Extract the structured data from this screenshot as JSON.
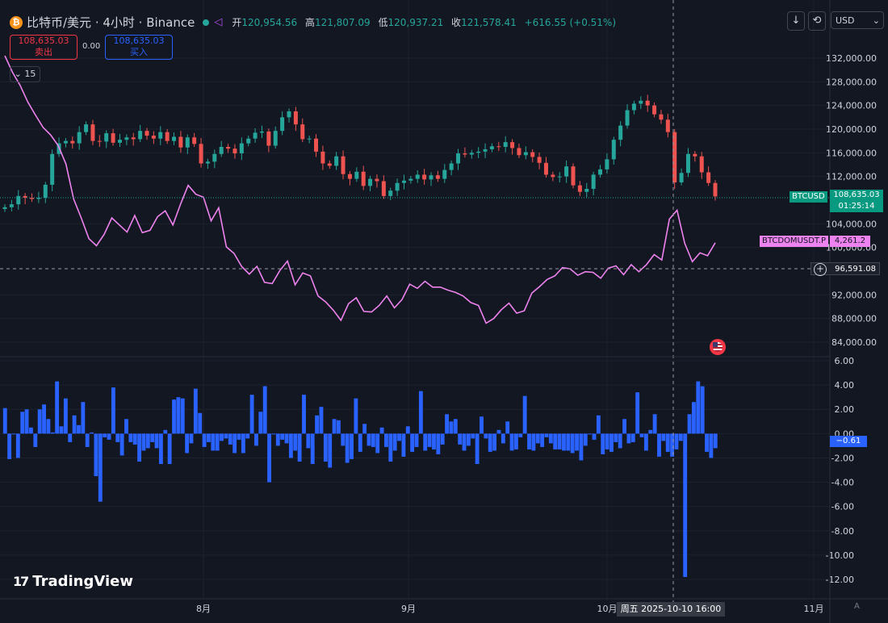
{
  "header": {
    "symbol_title": "比特币/美元 · 4小时 · Binance",
    "coin_glyph": "₿",
    "open_label": "开",
    "open_value": "120,954.56",
    "high_label": "高",
    "high_value": "121,807.09",
    "low_label": "低",
    "low_value": "120,937.21",
    "close_label": "收",
    "close_value": "121,578.41",
    "change_value": "+616.55 (+0.51%)"
  },
  "trading": {
    "sell_price": "108,635.03",
    "sell_label": "卖出",
    "spread": "0.00",
    "buy_price": "108,635.03",
    "buy_label": "买入",
    "quantity": "15"
  },
  "toolbar": {
    "download_icon": "download-arrow-icon",
    "refresh_icon": "cycle-icon",
    "currency": "USD"
  },
  "price_axis": {
    "labels": [
      "132,000.00",
      "128,000.00",
      "124,000.00",
      "120,000.00",
      "116,000.00",
      "112,000.00",
      "104,000.00",
      "100,000.00",
      "92,000.00",
      "88,000.00",
      "84,000.00"
    ]
  },
  "osc_axis": {
    "labels": [
      "6.00",
      "4.00",
      "2.00",
      "0.00",
      "-2.00",
      "-4.00",
      "-6.00",
      "-8.00",
      "-10.00",
      "-12.00"
    ]
  },
  "time_axis": {
    "labels": [
      "8月",
      "9月",
      "10月",
      "11月"
    ]
  },
  "series_labels": {
    "btc_tag": "BTCUSD",
    "btc_price": "108,635.03",
    "btc_countdown": "01:25:14",
    "dom_tag": "BTCDOMUSDT.P",
    "dom_price": "4,261.2"
  },
  "crosshair": {
    "y_value": "96,591.08",
    "x_value": "周五 2025-10-10  16:00"
  },
  "oscillator": {
    "current_value": "−0.61"
  },
  "branding": {
    "logo_text": "TradingView",
    "logo_mark": "17",
    "auto_label": "A"
  },
  "colors": {
    "background": "#131722",
    "up": "#26a69a",
    "down": "#ef5350",
    "dominance": "#ee82ee",
    "histogram": "#2962ff",
    "grid": "#1e222d"
  },
  "chart_data": {
    "type": "candlestick",
    "y_range": [
      82000,
      136000
    ],
    "price_ticks": [
      84000,
      88000,
      92000,
      100000,
      104000,
      112000,
      116000,
      120000,
      124000,
      128000,
      132000
    ],
    "btc_close": [
      106800,
      107300,
      108700,
      108400,
      108200,
      108400,
      110600,
      115800,
      117600,
      118000,
      117600,
      119500,
      120800,
      118000,
      117900,
      119300,
      117700,
      118200,
      118600,
      118300,
      119700,
      118900,
      118400,
      119500,
      118000,
      118700,
      116900,
      118600,
      117500,
      114200,
      114500,
      115800,
      117000,
      116700,
      115900,
      117600,
      118400,
      119400,
      119600,
      117200,
      119700,
      122000,
      123000,
      120800,
      118300,
      118400,
      116200,
      114200,
      113800,
      115400,
      112400,
      111600,
      112800,
      110400,
      111600,
      111200,
      108700,
      109600,
      110900,
      111300,
      111600,
      112300,
      111500,
      112200,
      111600,
      113100,
      114200,
      115900,
      115700,
      116000,
      116200,
      116600,
      117100,
      117000,
      117800,
      116800,
      115600,
      116100,
      115300,
      114300,
      112300,
      111900,
      112000,
      113700,
      110500,
      109400,
      109900,
      112300,
      113200,
      114900,
      118200,
      120600,
      123200,
      124300,
      124800,
      124000,
      122500,
      121600,
      119500,
      111000,
      112600,
      115800,
      115400,
      112700,
      110900,
      108635
    ],
    "dominance_y": [
      132400,
      129600,
      127400,
      124600,
      122400,
      120300,
      119000,
      117200,
      114100,
      108200,
      105000,
      101500,
      100300,
      102200,
      105000,
      103800,
      102600,
      105400,
      102500,
      102900,
      105200,
      106200,
      103800,
      107300,
      110500,
      109000,
      108500,
      104500,
      106700,
      100100,
      99000,
      96800,
      95500,
      96800,
      94100,
      93900,
      96100,
      97700,
      93700,
      95700,
      95200,
      91800,
      90800,
      89400,
      87700,
      90500,
      91500,
      89200,
      89100,
      90200,
      91800,
      89800,
      91200,
      93800,
      93100,
      94300,
      93300,
      93300,
      92800,
      92400,
      91800,
      90700,
      90200,
      87200,
      88000,
      89500,
      90600,
      88900,
      89300,
      92300,
      93400,
      94600,
      95200,
      96600,
      96400,
      95300,
      95900,
      95800,
      94800,
      96500,
      96900,
      95400,
      97100,
      95900,
      97100,
      98800,
      97900,
      104800,
      106300,
      100700,
      97600,
      99100,
      98600,
      100800
    ],
    "histogram": [
      2.1,
      -2.1,
      0.0,
      -2.0,
      1.8,
      2.0,
      0.5,
      -1.1,
      2.0,
      2.4,
      1.2,
      0.1,
      4.3,
      0.6,
      2.9,
      -0.7,
      1.5,
      0.7,
      2.6,
      -1.1,
      0.1,
      -3.5,
      -5.6,
      -0.3,
      -0.5,
      3.8,
      -0.7,
      -1.8,
      1.2,
      -0.7,
      -0.9,
      -2.3,
      -1.4,
      -1.2,
      -0.7,
      -1.2,
      -2.5,
      0.3,
      -2.5,
      2.8,
      3.0,
      2.9,
      -1.6,
      -0.8,
      3.7,
      1.7,
      -1.1,
      -0.7,
      -1.4,
      -1.4,
      -0.6,
      -0.4,
      -0.9,
      -1.6,
      -0.5,
      -1.6,
      -0.4,
      3.2,
      -1.0,
      1.8,
      3.9,
      -4.0,
      0.0,
      -1.0,
      -0.5,
      -0.8,
      -2.0,
      -1.4,
      -2.3,
      3.2,
      -1.2,
      -2.5,
      1.5,
      2.2,
      -2.3,
      -2.8,
      1.2,
      1.1,
      -1.0,
      -2.4,
      -2.1,
      2.9,
      -1.5,
      0.8,
      -1.0,
      -1.1,
      -1.6,
      0.5,
      -1.1,
      -2.3,
      -1.4,
      -0.6,
      -1.9,
      0.6,
      -1.5,
      -1.1,
      3.5,
      -1.4,
      -1.1,
      -1.3,
      -1.7,
      -0.9,
      1.6,
      1.0,
      1.2,
      -0.9,
      -1.4,
      -1.0,
      -0.4,
      -2.5,
      1.4,
      -0.4,
      -1.5,
      -1.4,
      0.3,
      -0.8,
      1.0,
      -1.4,
      -1.3,
      -0.3,
      3.1,
      -1.3,
      -1.4,
      -0.8,
      -1.1,
      -0.3,
      -0.8,
      -1.3,
      -1.3,
      -1.4,
      -1.4,
      -1.6,
      -1.4,
      -2.2,
      -1.0,
      0.0,
      -0.5,
      1.5,
      -1.7,
      -1.3,
      -1.5,
      -0.7,
      -1.2,
      1.2,
      -0.8,
      -0.7,
      3.4,
      -0.3,
      -1.4,
      0.3,
      1.6,
      -1.9,
      -0.6,
      -1.5,
      -1.9,
      -1.3,
      -0.6,
      -11.8,
      1.6,
      2.6,
      4.3,
      3.9,
      -1.5,
      -2.0,
      -1.2
    ],
    "hist_range": [
      -12.5,
      6.2
    ]
  }
}
